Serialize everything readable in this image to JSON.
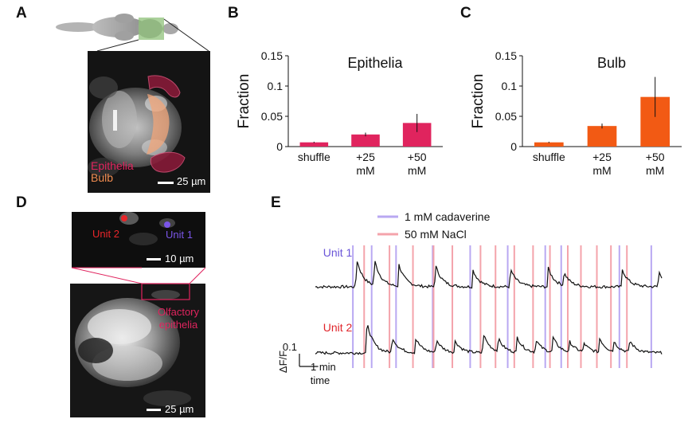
{
  "panels": {
    "a": "A",
    "b": "B",
    "c": "C",
    "d": "D",
    "e": "E"
  },
  "panel_a": {
    "overlay_label_epithelia": "Epithelia",
    "overlay_label_bulb": "Bulb",
    "scale_bar": "25 µm",
    "colors": {
      "epithelia": "#e0245e",
      "bulb": "#f08c50"
    }
  },
  "panel_d": {
    "unit2_label": "Unit 2",
    "unit1_label": "Unit 1",
    "zoom_scale_bar": "10 µm",
    "region_label_line1": "Olfactory",
    "region_label_line2": "epithelia",
    "scale_bar": "25 µm",
    "colors": {
      "unit2": "#e8262a",
      "unit1": "#7a55e8",
      "box": "#e0245e"
    }
  },
  "chart_data": [
    {
      "type": "bar",
      "title": "Epithelia",
      "categories": [
        "shuffle",
        "+25 mM",
        "+50 mM"
      ],
      "category_lines": [
        [
          "shuffle"
        ],
        [
          "+25",
          "mM"
        ],
        [
          "+50",
          "mM"
        ]
      ],
      "values": [
        0.007,
        0.02,
        0.039
      ],
      "errors": [
        0.001,
        0.003,
        0.015
      ],
      "ylabel": "Fraction",
      "xlabel": "",
      "ylim": [
        0,
        0.15
      ],
      "yticks": [
        0,
        0.05,
        0.1,
        0.15
      ],
      "ytick_labels": [
        "0",
        "0.05",
        "0.1",
        "0.15"
      ],
      "color": "#e0245e"
    },
    {
      "type": "bar",
      "title": "Bulb",
      "categories": [
        "shuffle",
        "+25 mM",
        "+50 mM"
      ],
      "category_lines": [
        [
          "shuffle"
        ],
        [
          "+25",
          "mM"
        ],
        [
          "+50",
          "mM"
        ]
      ],
      "values": [
        0.007,
        0.034,
        0.082
      ],
      "errors": [
        0.001,
        0.004,
        0.033
      ],
      "ylabel": "Fraction",
      "xlabel": "",
      "ylim": [
        0,
        0.15
      ],
      "yticks": [
        0,
        0.05,
        0.1,
        0.15
      ],
      "ytick_labels": [
        "0",
        "0.05",
        "0.1",
        "0.15"
      ],
      "color": "#f25a14"
    },
    {
      "type": "line",
      "title": "",
      "legend": [
        {
          "label": "1 mM cadaverine",
          "color": "#b9a8f2"
        },
        {
          "label": "50 mM NaCl",
          "color": "#f4a3ab"
        }
      ],
      "time_range_min": [
        0,
        18.5
      ],
      "cadaverine_onsets_min": [
        2.0,
        3.0,
        4.3,
        6.25,
        8.25,
        10.25,
        12.25,
        13.1,
        16.2,
        17.9
      ],
      "nacl_onsets_min": [
        2.6,
        3.95,
        5.2,
        6.3,
        7.3,
        8.8,
        9.6,
        10.6,
        11.6,
        12.5,
        13.45,
        14.15,
        15.0,
        15.75,
        16.6
      ],
      "series": [
        {
          "name": "Unit 1",
          "color": "#6a55d8",
          "peaks": [
            {
              "t": 2.2,
              "amp": 0.22
            },
            {
              "t": 3.15,
              "amp": 0.2
            },
            {
              "t": 4.45,
              "amp": 0.17
            },
            {
              "t": 6.4,
              "amp": 0.17
            },
            {
              "t": 8.4,
              "amp": 0.13
            },
            {
              "t": 10.4,
              "amp": 0.14
            },
            {
              "t": 12.4,
              "amp": 0.15
            },
            {
              "t": 13.25,
              "amp": 0.1
            },
            {
              "t": 16.35,
              "amp": 0.14
            },
            {
              "t": 18.3,
              "amp": 0.12
            }
          ]
        },
        {
          "name": "Unit 2",
          "color": "#e0242a",
          "peaks": [
            {
              "t": 2.75,
              "amp": 0.24
            },
            {
              "t": 4.1,
              "amp": 0.12
            },
            {
              "t": 5.35,
              "amp": 0.11
            },
            {
              "t": 6.45,
              "amp": 0.1
            },
            {
              "t": 7.45,
              "amp": 0.09
            },
            {
              "t": 8.95,
              "amp": 0.15
            },
            {
              "t": 9.75,
              "amp": 0.1
            },
            {
              "t": 10.75,
              "amp": 0.12
            },
            {
              "t": 11.75,
              "amp": 0.1
            },
            {
              "t": 12.65,
              "amp": 0.12
            },
            {
              "t": 13.55,
              "amp": 0.08
            },
            {
              "t": 14.3,
              "amp": 0.07
            },
            {
              "t": 15.15,
              "amp": 0.11
            },
            {
              "t": 15.9,
              "amp": 0.08
            },
            {
              "t": 16.75,
              "amp": 0.09
            }
          ]
        }
      ],
      "scale_bar": {
        "y_value": "0.1",
        "y_label": "ΔF/F",
        "x_value": "1 min",
        "x_label": "time"
      }
    }
  ]
}
